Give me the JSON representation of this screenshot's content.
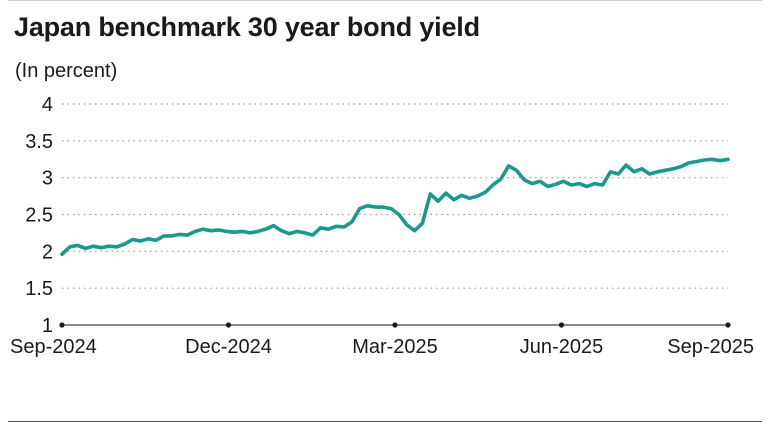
{
  "chart_data": {
    "type": "line",
    "title": "Japan benchmark 30 year bond yield",
    "subtitle": "(In percent)",
    "xlabel": "",
    "ylabel": "",
    "ylim": [
      1,
      4
    ],
    "yticks": [
      "1",
      "1.5",
      "2",
      "2.5",
      "3",
      "3.5",
      "4"
    ],
    "xticks": [
      "Sep-2024",
      "Dec-2024",
      "Mar-2025",
      "Jun-2025",
      "Sep-2025"
    ],
    "grid": true,
    "colors": {
      "line": "#1a9a8a",
      "grid": "#9a9a9a"
    },
    "series": [
      {
        "values": [
          [
            "Sep-2024",
            1.96
          ],
          [
            "Sep-2024",
            2.06
          ],
          [
            "Sep-2024",
            2.08
          ],
          [
            "Sep-2024",
            2.04
          ],
          [
            "Sep-2024",
            2.07
          ],
          [
            "Sep-2024",
            2.05
          ],
          [
            "Oct-2024",
            2.07
          ],
          [
            "Oct-2024",
            2.06
          ],
          [
            "Oct-2024",
            2.1
          ],
          [
            "Oct-2024",
            2.16
          ],
          [
            "Oct-2024",
            2.14
          ],
          [
            "Oct-2024",
            2.17
          ],
          [
            "Oct-2024",
            2.15
          ],
          [
            "Oct-2024",
            2.21
          ],
          [
            "Nov-2024",
            2.21
          ],
          [
            "Nov-2024",
            2.23
          ],
          [
            "Nov-2024",
            2.22
          ],
          [
            "Nov-2024",
            2.27
          ],
          [
            "Nov-2024",
            2.3
          ],
          [
            "Nov-2024",
            2.28
          ],
          [
            "Nov-2024",
            2.29
          ],
          [
            "Nov-2024",
            2.27
          ],
          [
            "Dec-2024",
            2.26
          ],
          [
            "Dec-2024",
            2.27
          ],
          [
            "Dec-2024",
            2.25
          ],
          [
            "Dec-2024",
            2.27
          ],
          [
            "Dec-2024",
            2.3
          ],
          [
            "Dec-2024",
            2.35
          ],
          [
            "Dec-2024",
            2.28
          ],
          [
            "Jan-2025",
            2.24
          ],
          [
            "Jan-2025",
            2.27
          ],
          [
            "Jan-2025",
            2.25
          ],
          [
            "Jan-2025",
            2.22
          ],
          [
            "Jan-2025",
            2.32
          ],
          [
            "Jan-2025",
            2.3
          ],
          [
            "Jan-2025",
            2.34
          ],
          [
            "Jan-2025",
            2.33
          ],
          [
            "Feb-2025",
            2.4
          ],
          [
            "Feb-2025",
            2.58
          ],
          [
            "Feb-2025",
            2.62
          ],
          [
            "Feb-2025",
            2.6
          ],
          [
            "Feb-2025",
            2.6
          ],
          [
            "Mar-2025",
            2.58
          ],
          [
            "Mar-2025",
            2.5
          ],
          [
            "Mar-2025",
            2.36
          ],
          [
            "Mar-2025",
            2.28
          ],
          [
            "Mar-2025",
            2.38
          ],
          [
            "Apr-2025",
            2.78
          ],
          [
            "Apr-2025",
            2.68
          ],
          [
            "Apr-2025",
            2.79
          ],
          [
            "Apr-2025",
            2.7
          ],
          [
            "Apr-2025",
            2.76
          ],
          [
            "Apr-2025",
            2.72
          ],
          [
            "Apr-2025",
            2.75
          ],
          [
            "Apr-2025",
            2.8
          ],
          [
            "Apr-2025",
            2.9
          ],
          [
            "May-2025",
            2.98
          ],
          [
            "May-2025",
            3.16
          ],
          [
            "May-2025",
            3.1
          ],
          [
            "May-2025",
            2.97
          ],
          [
            "May-2025",
            2.92
          ],
          [
            "May-2025",
            2.95
          ],
          [
            "May-2025",
            2.88
          ],
          [
            "Jun-2025",
            2.91
          ],
          [
            "Jun-2025",
            2.95
          ],
          [
            "Jun-2025",
            2.9
          ],
          [
            "Jun-2025",
            2.92
          ],
          [
            "Jun-2025",
            2.88
          ],
          [
            "Jun-2025",
            2.92
          ],
          [
            "Jul-2025",
            2.9
          ],
          [
            "Jul-2025",
            3.08
          ],
          [
            "Jul-2025",
            3.05
          ],
          [
            "Jul-2025",
            3.17
          ],
          [
            "Jul-2025",
            3.08
          ],
          [
            "Jul-2025",
            3.12
          ],
          [
            "Jul-2025",
            3.05
          ],
          [
            "Aug-2025",
            3.08
          ],
          [
            "Aug-2025",
            3.1
          ],
          [
            "Aug-2025",
            3.12
          ],
          [
            "Aug-2025",
            3.15
          ],
          [
            "Aug-2025",
            3.2
          ],
          [
            "Aug-2025",
            3.22
          ],
          [
            "Sep-2025",
            3.24
          ],
          [
            "Sep-2025",
            3.25
          ],
          [
            "Sep-2025",
            3.23
          ],
          [
            "Sep-2025",
            3.25
          ]
        ]
      }
    ]
  }
}
